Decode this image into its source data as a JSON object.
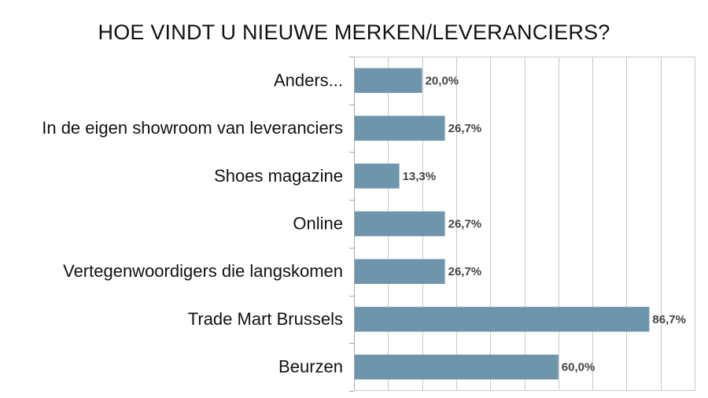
{
  "chart_data": {
    "type": "bar",
    "orientation": "horizontal",
    "title": "HOE VINDT U NIEUWE MERKEN/LEVERANCIERS?",
    "categories": [
      "Anders...",
      "In de eigen showroom van leveranciers",
      "Shoes magazine",
      "Online",
      "Vertegenwoordigers die langskomen",
      "Trade Mart Brussels",
      "Beurzen"
    ],
    "values": [
      20.0,
      26.7,
      13.3,
      26.7,
      26.7,
      86.7,
      60.0
    ],
    "value_labels": [
      "20,0%",
      "26,7%",
      "13,3%",
      "26,7%",
      "26,7%",
      "86,7%",
      "60,0%"
    ],
    "xlim": [
      0,
      100
    ],
    "grid": true,
    "bar_color": "#6f95ad",
    "xlabel": "",
    "ylabel": ""
  }
}
